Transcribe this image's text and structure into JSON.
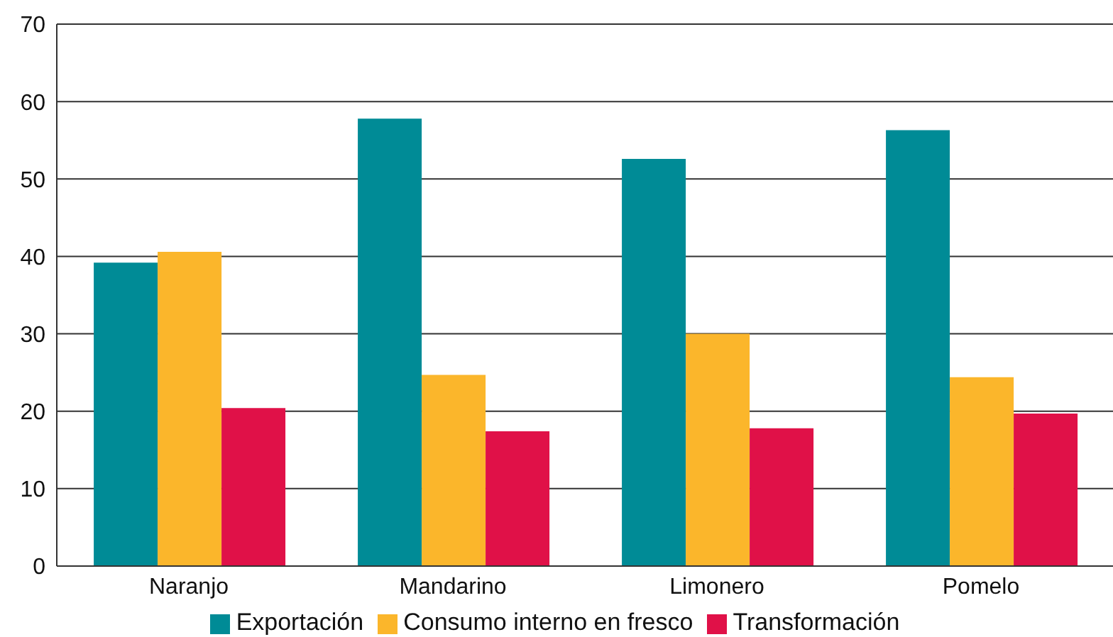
{
  "chart_data": {
    "type": "bar",
    "categories": [
      "Naranjo",
      "Mandarino",
      "Limonero",
      "Pomelo"
    ],
    "series": [
      {
        "name": "Exportación",
        "color": "#008b96",
        "values": [
          39.2,
          57.8,
          52.6,
          56.3
        ]
      },
      {
        "name": "Consumo interno en fresco",
        "color": "#fbb62b",
        "values": [
          40.6,
          24.7,
          30.0,
          24.4
        ]
      },
      {
        "name": "Transformación",
        "color": "#e01148",
        "values": [
          20.4,
          17.4,
          17.8,
          19.7
        ]
      }
    ],
    "ylim": [
      0,
      70
    ],
    "yticks": [
      0,
      10,
      20,
      30,
      40,
      50,
      60,
      70
    ],
    "grid": "y",
    "legend": "bottom"
  }
}
